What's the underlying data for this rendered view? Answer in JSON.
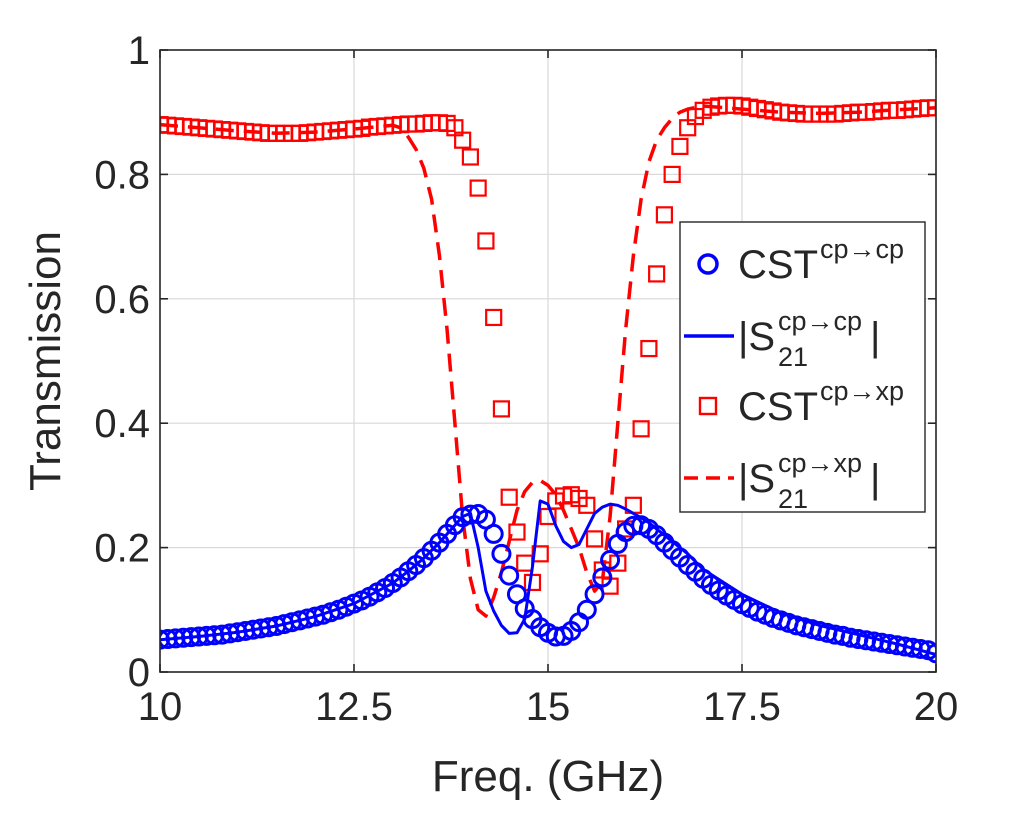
{
  "chart_data": {
    "type": "scatter",
    "xlabel": "Freq. (GHz)",
    "ylabel": "Transmission",
    "xlim": [
      10,
      20
    ],
    "ylim": [
      0,
      1
    ],
    "grid": true,
    "legend_position": "right",
    "x_ticks": [
      10,
      12.5,
      15,
      17.5,
      20
    ],
    "x_tick_labels": [
      "10",
      "12.5",
      "15",
      "17.5",
      "20"
    ],
    "y_ticks": [
      0,
      0.2,
      0.4,
      0.6,
      0.8,
      1
    ],
    "y_tick_labels": [
      "0",
      "0.2",
      "0.4",
      "0.6",
      "0.8",
      "1"
    ],
    "series": [
      {
        "name": "CST^{cp→cp}",
        "legend_base": "CST",
        "legend_sup": "cp→cp",
        "legend_sub": "",
        "legend_prefix": "",
        "legend_suffix": "",
        "style": "circle-markers",
        "color": "#0000ff",
        "x": [
          10.0,
          10.1,
          10.2,
          10.3,
          10.4,
          10.5,
          10.6,
          10.7,
          10.8,
          10.9,
          11.0,
          11.1,
          11.2,
          11.3,
          11.4,
          11.5,
          11.6,
          11.7,
          11.8,
          11.9,
          12.0,
          12.1,
          12.2,
          12.3,
          12.4,
          12.5,
          12.6,
          12.7,
          12.8,
          12.9,
          13.0,
          13.1,
          13.2,
          13.3,
          13.4,
          13.5,
          13.6,
          13.7,
          13.8,
          13.9,
          14.0,
          14.1,
          14.2,
          14.3,
          14.4,
          14.5,
          14.6,
          14.7,
          14.8,
          14.9,
          15.0,
          15.1,
          15.2,
          15.3,
          15.4,
          15.5,
          15.6,
          15.7,
          15.8,
          15.9,
          16.0,
          16.1,
          16.2,
          16.3,
          16.4,
          16.5,
          16.6,
          16.7,
          16.8,
          16.9,
          17.0,
          17.1,
          17.2,
          17.3,
          17.4,
          17.5,
          17.6,
          17.7,
          17.8,
          17.9,
          18.0,
          18.1,
          18.2,
          18.3,
          18.4,
          18.5,
          18.6,
          18.7,
          18.8,
          18.9,
          19.0,
          19.1,
          19.2,
          19.3,
          19.4,
          19.5,
          19.6,
          19.7,
          19.8,
          19.9,
          20.0
        ],
        "y": [
          0.052,
          0.053,
          0.054,
          0.055,
          0.056,
          0.057,
          0.058,
          0.059,
          0.06,
          0.062,
          0.064,
          0.066,
          0.068,
          0.07,
          0.072,
          0.074,
          0.077,
          0.08,
          0.083,
          0.086,
          0.089,
          0.092,
          0.096,
          0.1,
          0.105,
          0.11,
          0.115,
          0.121,
          0.128,
          0.135,
          0.143,
          0.152,
          0.162,
          0.172,
          0.183,
          0.195,
          0.208,
          0.222,
          0.236,
          0.249,
          0.253,
          0.254,
          0.245,
          0.222,
          0.19,
          0.155,
          0.125,
          0.102,
          0.085,
          0.072,
          0.063,
          0.057,
          0.058,
          0.066,
          0.08,
          0.1,
          0.125,
          0.152,
          0.18,
          0.206,
          0.225,
          0.235,
          0.236,
          0.23,
          0.22,
          0.208,
          0.196,
          0.184,
          0.172,
          0.161,
          0.15,
          0.14,
          0.131,
          0.123,
          0.116,
          0.109,
          0.103,
          0.097,
          0.092,
          0.087,
          0.083,
          0.079,
          0.075,
          0.072,
          0.069,
          0.066,
          0.063,
          0.06,
          0.058,
          0.055,
          0.053,
          0.051,
          0.049,
          0.047,
          0.045,
          0.043,
          0.041,
          0.039,
          0.037,
          0.035,
          0.03
        ]
      },
      {
        "name": "|S21^{cp→cp}|",
        "legend_base": "S",
        "legend_sup": "cp→cp",
        "legend_sub": "21",
        "legend_prefix": "|",
        "legend_suffix": "|",
        "style": "solid-line",
        "color": "#0000ff",
        "x": [
          10.0,
          10.5,
          11.0,
          11.5,
          12.0,
          12.5,
          13.0,
          13.2,
          13.4,
          13.6,
          13.8,
          13.9,
          14.0,
          14.1,
          14.2,
          14.3,
          14.4,
          14.5,
          14.6,
          14.7,
          14.8,
          14.9,
          15.0,
          15.1,
          15.2,
          15.3,
          15.4,
          15.5,
          15.6,
          15.7,
          15.8,
          15.9,
          16.0,
          16.1,
          16.2,
          16.3,
          16.4,
          16.6,
          16.8,
          17.0,
          17.5,
          18.0,
          18.5,
          19.0,
          19.5,
          20.0
        ],
        "y": [
          0.052,
          0.057,
          0.064,
          0.074,
          0.089,
          0.11,
          0.143,
          0.162,
          0.183,
          0.208,
          0.236,
          0.25,
          0.255,
          0.2,
          0.13,
          0.098,
          0.075,
          0.062,
          0.063,
          0.085,
          0.17,
          0.275,
          0.27,
          0.235,
          0.21,
          0.2,
          0.205,
          0.23,
          0.255,
          0.265,
          0.27,
          0.268,
          0.262,
          0.255,
          0.248,
          0.24,
          0.23,
          0.21,
          0.19,
          0.165,
          0.125,
          0.095,
          0.075,
          0.06,
          0.045,
          0.028
        ]
      },
      {
        "name": "CST^{cp→xp}",
        "legend_base": "CST",
        "legend_sup": "cp→xp",
        "legend_sub": "",
        "legend_prefix": "",
        "legend_suffix": "",
        "style": "square-markers",
        "color": "#ff0000",
        "x": [
          10.0,
          10.1,
          10.2,
          10.3,
          10.4,
          10.5,
          10.6,
          10.7,
          10.8,
          10.9,
          11.0,
          11.1,
          11.2,
          11.3,
          11.4,
          11.5,
          11.6,
          11.7,
          11.8,
          11.9,
          12.0,
          12.1,
          12.2,
          12.3,
          12.4,
          12.5,
          12.6,
          12.7,
          12.8,
          12.9,
          13.0,
          13.1,
          13.2,
          13.3,
          13.4,
          13.5,
          13.6,
          13.7,
          13.8,
          13.9,
          14.0,
          14.1,
          14.2,
          14.3,
          14.4,
          14.5,
          14.6,
          14.7,
          14.8,
          14.9,
          15.0,
          15.1,
          15.2,
          15.3,
          15.4,
          15.5,
          15.6,
          15.7,
          15.8,
          15.9,
          16.0,
          16.1,
          16.2,
          16.3,
          16.4,
          16.5,
          16.6,
          16.7,
          16.8,
          16.9,
          17.0,
          17.1,
          17.2,
          17.3,
          17.4,
          17.5,
          17.6,
          17.7,
          17.8,
          17.9,
          18.0,
          18.1,
          18.2,
          18.3,
          18.4,
          18.5,
          18.6,
          18.7,
          18.8,
          18.9,
          19.0,
          19.1,
          19.2,
          19.3,
          19.4,
          19.5,
          19.6,
          19.7,
          19.8,
          19.9,
          20.0
        ],
        "y": [
          0.88,
          0.879,
          0.878,
          0.877,
          0.876,
          0.875,
          0.874,
          0.873,
          0.872,
          0.871,
          0.87,
          0.869,
          0.868,
          0.867,
          0.866,
          0.866,
          0.866,
          0.866,
          0.866,
          0.867,
          0.868,
          0.869,
          0.87,
          0.871,
          0.872,
          0.873,
          0.874,
          0.876,
          0.877,
          0.878,
          0.879,
          0.88,
          0.881,
          0.881,
          0.882,
          0.883,
          0.883,
          0.882,
          0.875,
          0.855,
          0.828,
          0.778,
          0.693,
          0.57,
          0.423,
          0.281,
          0.225,
          0.175,
          0.144,
          0.19,
          0.25,
          0.275,
          0.283,
          0.285,
          0.279,
          0.268,
          0.214,
          0.164,
          0.138,
          0.175,
          0.23,
          0.268,
          0.391,
          0.52,
          0.64,
          0.735,
          0.8,
          0.845,
          0.875,
          0.893,
          0.903,
          0.908,
          0.91,
          0.911,
          0.911,
          0.91,
          0.908,
          0.906,
          0.904,
          0.902,
          0.9,
          0.899,
          0.898,
          0.897,
          0.897,
          0.897,
          0.897,
          0.897,
          0.898,
          0.899,
          0.9,
          0.9,
          0.901,
          0.902,
          0.903,
          0.903,
          0.904,
          0.905,
          0.906,
          0.907,
          0.907
        ]
      },
      {
        "name": "|S21^{cp→xp}|",
        "legend_base": "S",
        "legend_sup": "cp→xp",
        "legend_sub": "21",
        "legend_prefix": "|",
        "legend_suffix": "|",
        "style": "dashed-line",
        "color": "#ff0000",
        "x": [
          10.0,
          10.5,
          11.0,
          11.5,
          12.0,
          12.5,
          13.0,
          13.1,
          13.2,
          13.3,
          13.4,
          13.5,
          13.6,
          13.7,
          13.8,
          13.9,
          14.0,
          14.1,
          14.2,
          14.3,
          14.4,
          14.5,
          14.6,
          14.7,
          14.8,
          14.9,
          15.0,
          15.1,
          15.2,
          15.3,
          15.4,
          15.5,
          15.6,
          15.7,
          15.8,
          15.9,
          16.0,
          16.1,
          16.2,
          16.3,
          16.4,
          16.5,
          16.6,
          16.7,
          16.8,
          17.0,
          17.5,
          18.0,
          18.5,
          19.0,
          19.5,
          20.0
        ],
        "y": [
          0.88,
          0.875,
          0.87,
          0.866,
          0.868,
          0.873,
          0.879,
          0.875,
          0.86,
          0.84,
          0.81,
          0.76,
          0.67,
          0.55,
          0.4,
          0.25,
          0.15,
          0.1,
          0.09,
          0.12,
          0.16,
          0.21,
          0.26,
          0.29,
          0.305,
          0.308,
          0.3,
          0.285,
          0.26,
          0.23,
          0.2,
          0.16,
          0.13,
          0.145,
          0.25,
          0.4,
          0.55,
          0.67,
          0.76,
          0.82,
          0.855,
          0.875,
          0.89,
          0.9,
          0.905,
          0.91,
          0.905,
          0.9,
          0.898,
          0.9,
          0.904,
          0.907
        ]
      }
    ]
  }
}
